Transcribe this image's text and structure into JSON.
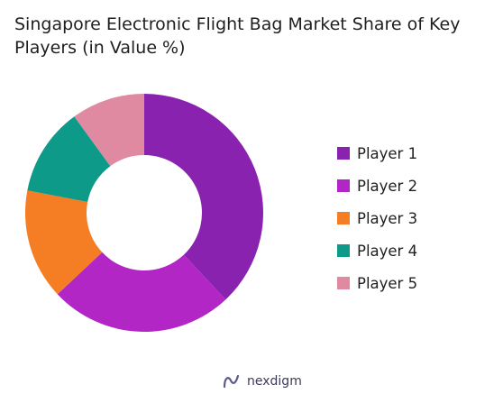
{
  "title": "Singapore Electronic Flight Bag Market Share of Key Players (in Value %)",
  "brand": {
    "name": "nexdigm",
    "icon": "nexdigm-logo-icon"
  },
  "chart_data": {
    "type": "pie",
    "donut": true,
    "title": "Singapore Electronic Flight Bag Market Share of Key Players (in Value %)",
    "categories": [
      "Player 1",
      "Player 2",
      "Player 3",
      "Player 4",
      "Player 5"
    ],
    "values": [
      38,
      25,
      15,
      12,
      10
    ],
    "colors": [
      "#8A22B0",
      "#B226C6",
      "#F57E25",
      "#0E9A89",
      "#E08AA1"
    ],
    "legend": "right",
    "start_angle": "top, clockwise"
  }
}
